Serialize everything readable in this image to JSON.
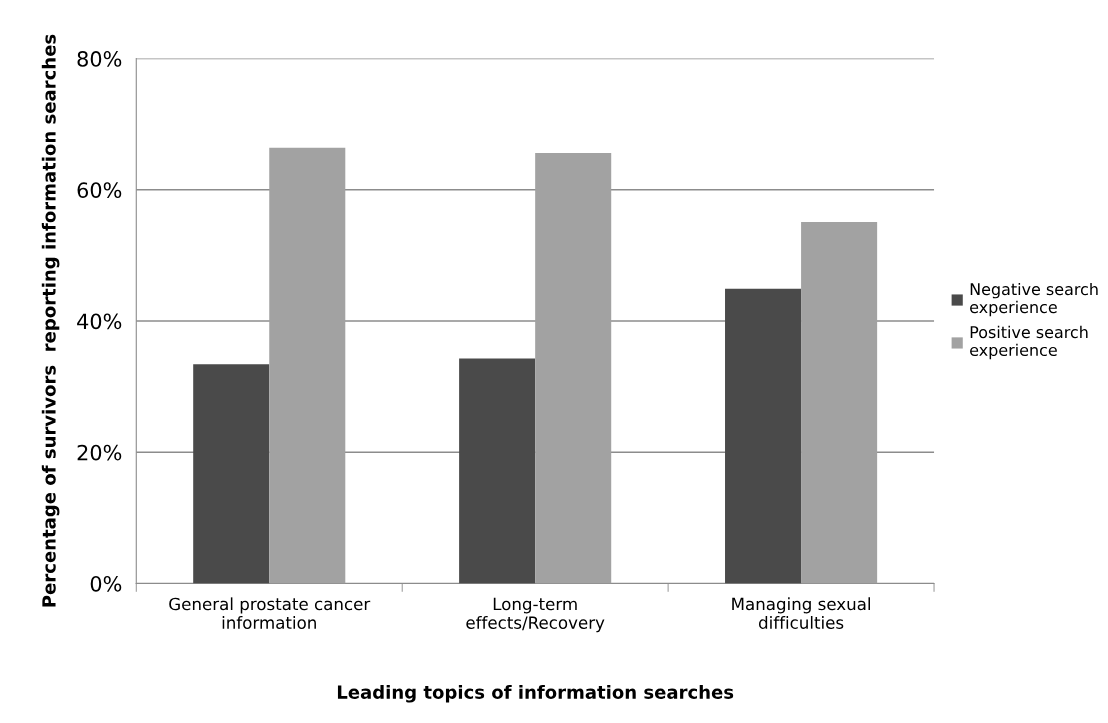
{
  "chart_data": {
    "type": "bar",
    "xlabel": "Leading topics of information searches",
    "ylabel": "Percentage of survivors  reporting information searches",
    "categories": [
      "General prostate cancer\ninformation",
      "Long-term\neffects/Recovery",
      "Managing sexual\ndifficulties"
    ],
    "series": [
      {
        "name": "Negative search\nexperience",
        "color": "#4a4a4a",
        "values": [
          33.4,
          34.3,
          44.9
        ]
      },
      {
        "name": "Positive search\nexperience",
        "color": "#a2a2a2",
        "values": [
          66.4,
          65.6,
          55.1
        ]
      }
    ],
    "ylim": [
      0,
      80
    ],
    "yticks": [
      {
        "value": 0,
        "label": "0%"
      },
      {
        "value": 20,
        "label": "20%"
      },
      {
        "value": 40,
        "label": "40%"
      },
      {
        "value": 60,
        "label": "60%"
      },
      {
        "value": 80,
        "label": "80%"
      }
    ],
    "grid": "y",
    "legend": "right"
  }
}
